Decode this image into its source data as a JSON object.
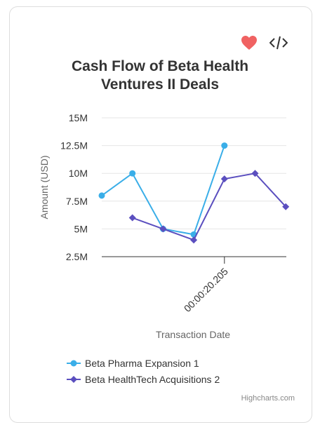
{
  "toolbar": {
    "heart_icon": "heart-icon",
    "code_icon": "code-icon"
  },
  "credit": "Highcharts.com",
  "chart_data": {
    "type": "line",
    "title": "Cash Flow of Beta Health Ventures II Deals",
    "title_lines": [
      "Cash Flow of Beta Health",
      "Ventures II Deals"
    ],
    "xlabel": "Transaction Date",
    "ylabel": "Amount (USD)",
    "x_tick_labels": [
      "00:00:20.205"
    ],
    "y_ticks": [
      2500000,
      5000000,
      7500000,
      10000000,
      12500000,
      15000000
    ],
    "y_tick_labels": [
      "2.5M",
      "5M",
      "7.5M",
      "10M",
      "12.5M",
      "15M"
    ],
    "ylim": [
      2500000,
      15000000
    ],
    "grid": true,
    "legend_position": "bottom",
    "series": [
      {
        "name": "Beta Pharma Expansion 1",
        "color": "#3aaee8",
        "marker": "circle",
        "points": [
          [
            0,
            8000000
          ],
          [
            1,
            10000000
          ],
          [
            2,
            5000000
          ],
          [
            3,
            4500000
          ],
          [
            4,
            12500000
          ]
        ]
      },
      {
        "name": "Beta HealthTech Acquisitions 2",
        "color": "#5b4fbf",
        "marker": "diamond",
        "points": [
          [
            1,
            6000000
          ],
          [
            2,
            5000000
          ],
          [
            3,
            4000000
          ],
          [
            4,
            9500000
          ],
          [
            5,
            10000000
          ],
          [
            6,
            7000000
          ]
        ]
      }
    ]
  }
}
